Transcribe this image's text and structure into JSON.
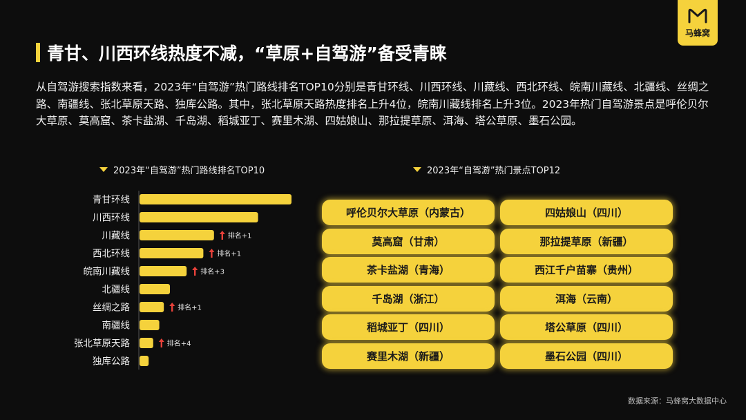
{
  "brand": {
    "name": "马蜂窝",
    "color": "#f5d23c"
  },
  "title": "青甘、川西环线热度不减，“草原+自驾游”备受青睐",
  "intro": "从自驾游搜索指数来看，2023年“自驾游”热门路线排名TOP10分别是青甘环线、川西环线、川藏线、西北环线、皖南川藏线、北疆线、丝绸之路、南疆线、张北草原天路、独库公路。其中，张北草原天路热度排名上升4位，皖南川藏线排名上升3位。2023年热门自驾游景点是呼伦贝尔大草原、莫高窟、茶卡盐湖、千岛湖、稻城亚丁、赛里木湖、四姑娘山、那拉提草原、洱海、塔公草原、墨石公园。",
  "routes_title": "2023年“自驾游”热门路线排名TOP10",
  "spots_title": "2023年“自驾游”热门景点TOP12",
  "chart_data": {
    "type": "bar",
    "orientation": "horizontal",
    "title": "2023年“自驾游”热门路线排名TOP10",
    "categories": [
      "青甘环线",
      "川西环线",
      "川藏线",
      "西北环线",
      "皖南川藏线",
      "北疆线",
      "丝绸之路",
      "南疆线",
      "张北草原天路",
      "独库公路"
    ],
    "values": [
      100,
      78,
      49,
      42,
      31,
      20,
      16,
      13,
      9,
      6
    ],
    "annotations": [
      "",
      "",
      "排名+1",
      "排名+1",
      "排名+3",
      "",
      "排名+1",
      "",
      "排名+4",
      ""
    ],
    "bar_color": "#f5d23c",
    "arrow_color": "#e8413a",
    "xlim": [
      0,
      100
    ],
    "axis_labels_shown": false,
    "grid": false
  },
  "spots": [
    "呼伦贝尔大草原（内蒙古）",
    "四姑娘山（四川）",
    "莫高窟（甘肃）",
    "那拉提草原（新疆）",
    "茶卡盐湖（青海）",
    "西江千户苗寨（贵州）",
    "千岛湖（浙江）",
    "洱海（云南）",
    "稻城亚丁（四川）",
    "塔公草原（四川）",
    "赛里木湖（新疆）",
    "墨石公园（四川）"
  ],
  "source": "数据来源：马蜂窝大数据中心"
}
